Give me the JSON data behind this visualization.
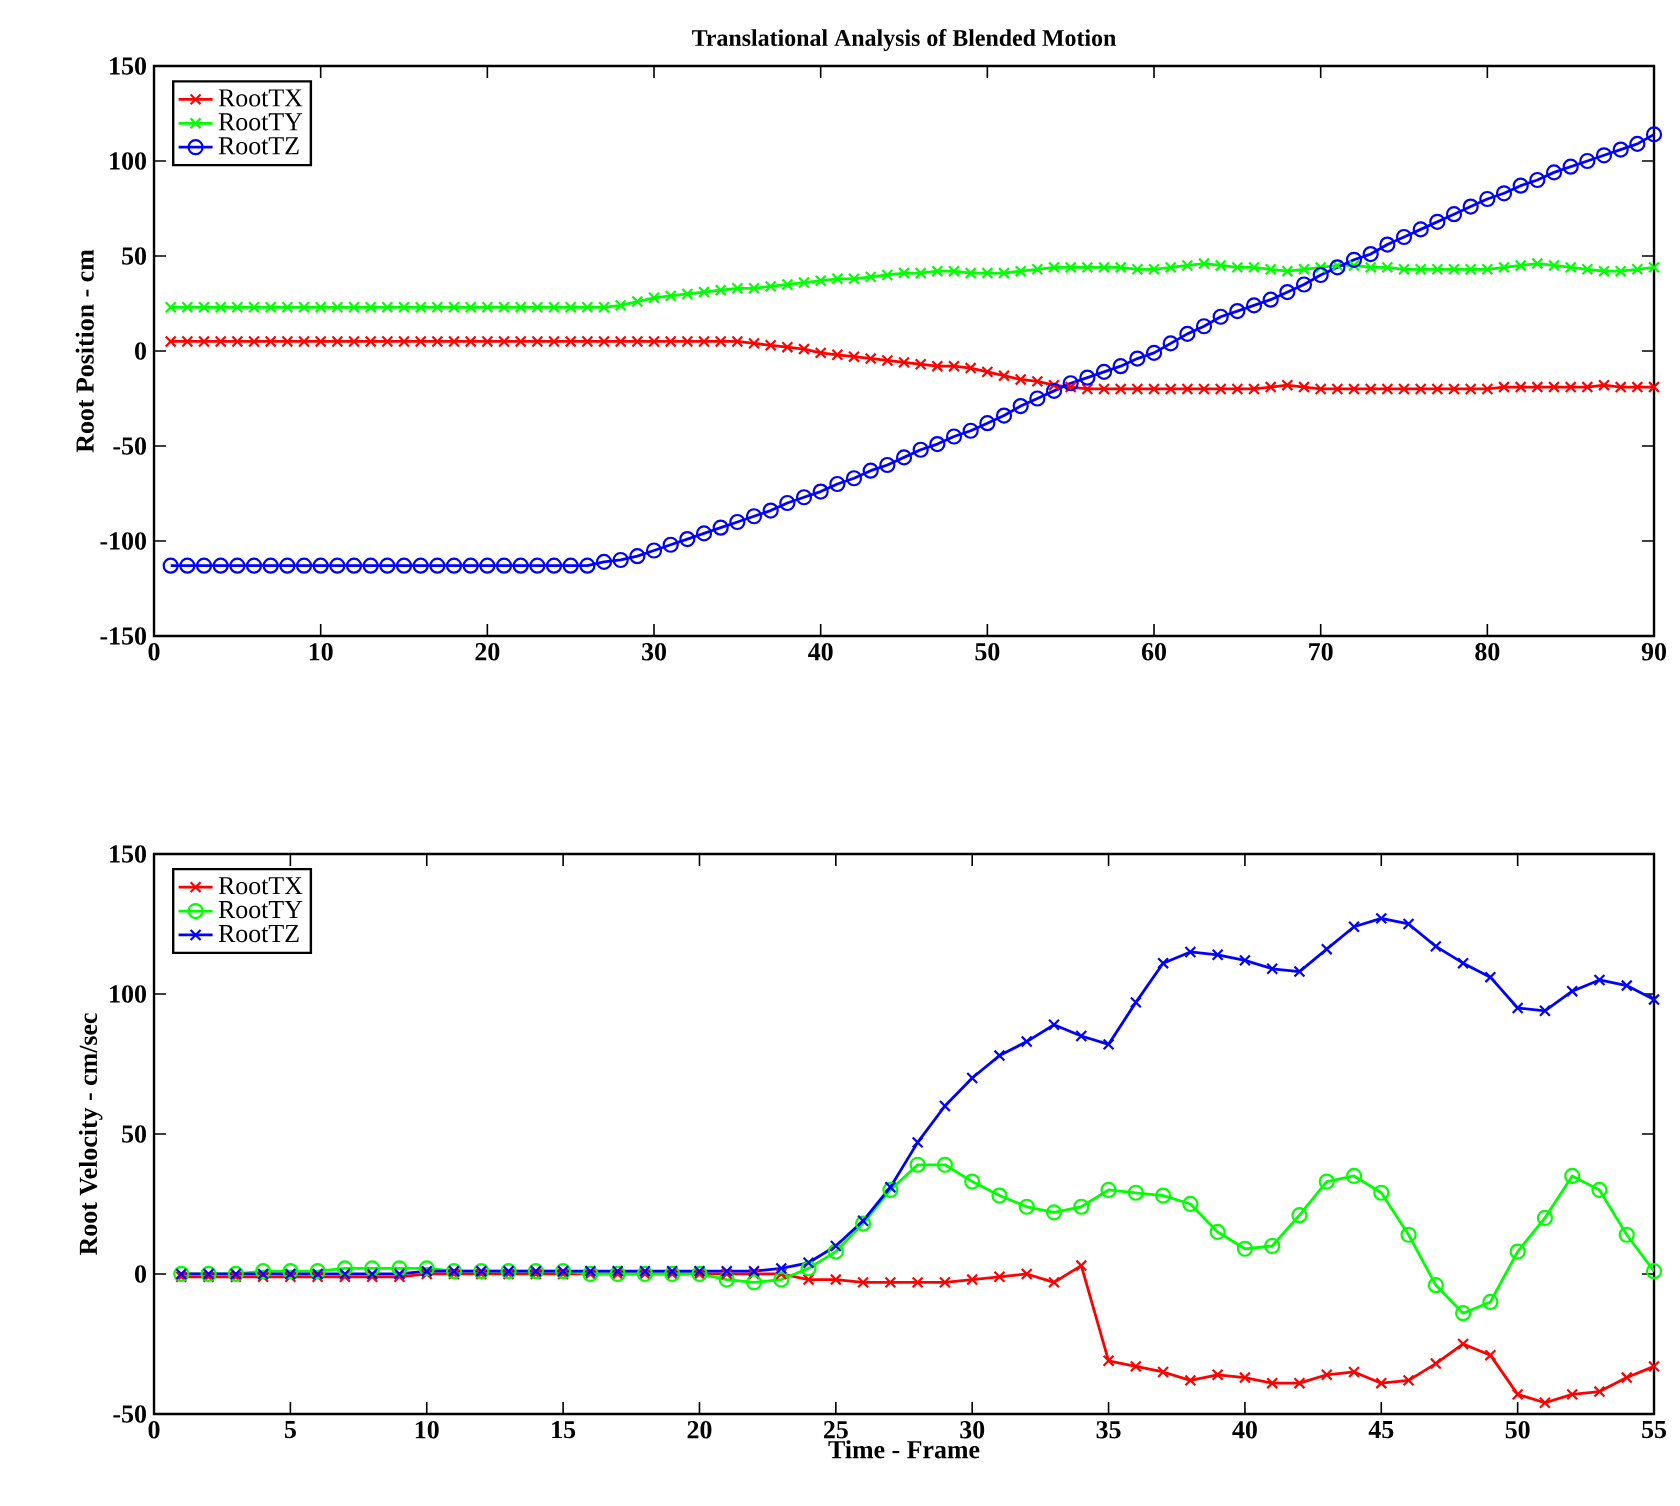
{
  "chart_data": [
    {
      "type": "line",
      "title": "Translational Analysis of Blended Motion",
      "ylabel": "Root Position - cm",
      "xlim": [
        0,
        90
      ],
      "ylim": [
        -150,
        150
      ],
      "xticks": [
        0,
        10,
        20,
        30,
        40,
        50,
        60,
        70,
        80,
        90
      ],
      "yticks": [
        -150,
        -100,
        -50,
        0,
        50,
        100,
        150
      ],
      "grid": false,
      "legend": "top left",
      "line_style": "solid",
      "x": [
        1,
        2,
        3,
        4,
        5,
        6,
        7,
        8,
        9,
        10,
        11,
        12,
        13,
        14,
        15,
        16,
        17,
        18,
        19,
        20,
        21,
        22,
        23,
        24,
        25,
        26,
        27,
        28,
        29,
        30,
        31,
        32,
        33,
        34,
        35,
        36,
        37,
        38,
        39,
        40,
        41,
        42,
        43,
        44,
        45,
        46,
        47,
        48,
        49,
        50,
        51,
        52,
        53,
        54,
        55,
        56,
        57,
        58,
        59,
        60,
        61,
        62,
        63,
        64,
        65,
        66,
        67,
        68,
        69,
        70,
        71,
        72,
        73,
        74,
        75,
        76,
        77,
        78,
        79,
        80,
        81,
        82,
        83,
        84,
        85,
        86,
        87,
        88,
        89,
        90
      ],
      "series": [
        {
          "name": "RootTX",
          "color": "#ff0000",
          "marker": "cross",
          "values": [
            5,
            5,
            5,
            5,
            5,
            5,
            5,
            5,
            5,
            5,
            5,
            5,
            5,
            5,
            5,
            5,
            5,
            5,
            5,
            5,
            5,
            5,
            5,
            5,
            5,
            5,
            5,
            5,
            5,
            5,
            5,
            5,
            5,
            5,
            5,
            4,
            3,
            2,
            1,
            -1,
            -2,
            -3,
            -4,
            -5,
            -6,
            -7,
            -8,
            -8,
            -9,
            -11,
            -13,
            -15,
            -16,
            -18,
            -19,
            -20,
            -20,
            -20,
            -20,
            -20,
            -20,
            -20,
            -20,
            -20,
            -20,
            -20,
            -19,
            -18,
            -19,
            -20,
            -20,
            -20,
            -20,
            -20,
            -20,
            -20,
            -20,
            -20,
            -20,
            -20,
            -19,
            -19,
            -19,
            -19,
            -19,
            -19,
            -18,
            -19,
            -19,
            -19
          ]
        },
        {
          "name": "RootTY",
          "color": "#00ff00",
          "marker": "cross",
          "values": [
            23,
            23,
            23,
            23,
            23,
            23,
            23,
            23,
            23,
            23,
            23,
            23,
            23,
            23,
            23,
            23,
            23,
            23,
            23,
            23,
            23,
            23,
            23,
            23,
            23,
            23,
            23,
            24,
            26,
            28,
            29,
            30,
            31,
            32,
            33,
            33,
            34,
            35,
            36,
            37,
            38,
            38,
            39,
            40,
            41,
            41,
            42,
            42,
            41,
            41,
            41,
            42,
            43,
            44,
            44,
            44,
            44,
            44,
            43,
            43,
            44,
            45,
            46,
            45,
            44,
            44,
            43,
            42,
            43,
            44,
            45,
            45,
            44,
            44,
            43,
            43,
            43,
            43,
            43,
            43,
            44,
            45,
            46,
            45,
            44,
            43,
            42,
            42,
            43,
            44
          ]
        },
        {
          "name": "RootTZ",
          "color": "#0000ff",
          "marker": "circle",
          "values": [
            -113,
            -113,
            -113,
            -113,
            -113,
            -113,
            -113,
            -113,
            -113,
            -113,
            -113,
            -113,
            -113,
            -113,
            -113,
            -113,
            -113,
            -113,
            -113,
            -113,
            -113,
            -113,
            -113,
            -113,
            -113,
            -113,
            -111,
            -110,
            -108,
            -105,
            -102,
            -99,
            -96,
            -93,
            -90,
            -87,
            -84,
            -80,
            -77,
            -74,
            -70,
            -67,
            -63,
            -60,
            -56,
            -52,
            -49,
            -45,
            -42,
            -38,
            -34,
            -29,
            -25,
            -21,
            -17,
            -14,
            -11,
            -8,
            -4,
            -1,
            4,
            9,
            13,
            18,
            21,
            24,
            27,
            31,
            35,
            40,
            44,
            48,
            51,
            56,
            60,
            64,
            68,
            72,
            76,
            80,
            83,
            87,
            90,
            94,
            97,
            100,
            103,
            106,
            109,
            114
          ]
        }
      ]
    },
    {
      "type": "line",
      "xlabel": "Time - Frame",
      "ylabel": "Root Velocity - cm/sec",
      "xlim": [
        0,
        55
      ],
      "ylim": [
        -50,
        150
      ],
      "xticks": [
        0,
        5,
        10,
        15,
        20,
        25,
        30,
        35,
        40,
        45,
        50,
        55
      ],
      "yticks": [
        -50,
        0,
        50,
        100,
        150
      ],
      "grid": false,
      "legend": "top left",
      "line_style": "solid",
      "x": [
        1,
        2,
        3,
        4,
        5,
        6,
        7,
        8,
        9,
        10,
        11,
        12,
        13,
        14,
        15,
        16,
        17,
        18,
        19,
        20,
        21,
        22,
        23,
        24,
        25,
        26,
        27,
        28,
        29,
        30,
        31,
        32,
        33,
        34,
        35,
        36,
        37,
        38,
        39,
        40,
        41,
        42,
        43,
        44,
        45,
        46,
        47,
        48,
        49,
        50,
        51,
        52,
        53,
        54,
        55
      ],
      "series": [
        {
          "name": "RootTX",
          "color": "#ff0000",
          "marker": "cross",
          "values": [
            -1,
            -1,
            -1,
            -1,
            -1,
            -1,
            -1,
            -1,
            -1,
            0,
            0,
            0,
            0,
            0,
            0,
            0,
            0,
            0,
            0,
            0,
            0,
            0,
            0,
            -2,
            -2,
            -3,
            -3,
            -3,
            -3,
            -2,
            -1,
            0,
            -3,
            3,
            -31,
            -33,
            -35,
            -38,
            -36,
            -37,
            -39,
            -39,
            -36,
            -35,
            -39,
            -38,
            -32,
            -25,
            -29,
            -43,
            -46,
            -43,
            -42,
            -37,
            -33
          ]
        },
        {
          "name": "RootTY",
          "color": "#00ff00",
          "marker": "circle",
          "values": [
            0,
            0,
            0,
            1,
            1,
            1,
            2,
            2,
            2,
            2,
            1,
            1,
            1,
            1,
            1,
            0,
            0,
            0,
            0,
            0,
            -2,
            -3,
            -2,
            2,
            8,
            18,
            30,
            39,
            39,
            33,
            28,
            24,
            22,
            24,
            30,
            29,
            28,
            25,
            15,
            9,
            10,
            21,
            33,
            35,
            29,
            14,
            -4,
            -14,
            -10,
            8,
            20,
            35,
            30,
            14,
            1
          ]
        },
        {
          "name": "RootTZ",
          "color": "#0000ff",
          "marker": "cross",
          "values": [
            0,
            0,
            0,
            0,
            0,
            0,
            0,
            0,
            0,
            1,
            1,
            1,
            1,
            1,
            1,
            1,
            1,
            1,
            1,
            1,
            1,
            1,
            2,
            4,
            10,
            19,
            31,
            47,
            60,
            70,
            78,
            83,
            89,
            85,
            82,
            97,
            111,
            115,
            114,
            112,
            109,
            108,
            116,
            124,
            127,
            125,
            117,
            111,
            106,
            95,
            94,
            101,
            105,
            103,
            98
          ]
        }
      ]
    }
  ]
}
